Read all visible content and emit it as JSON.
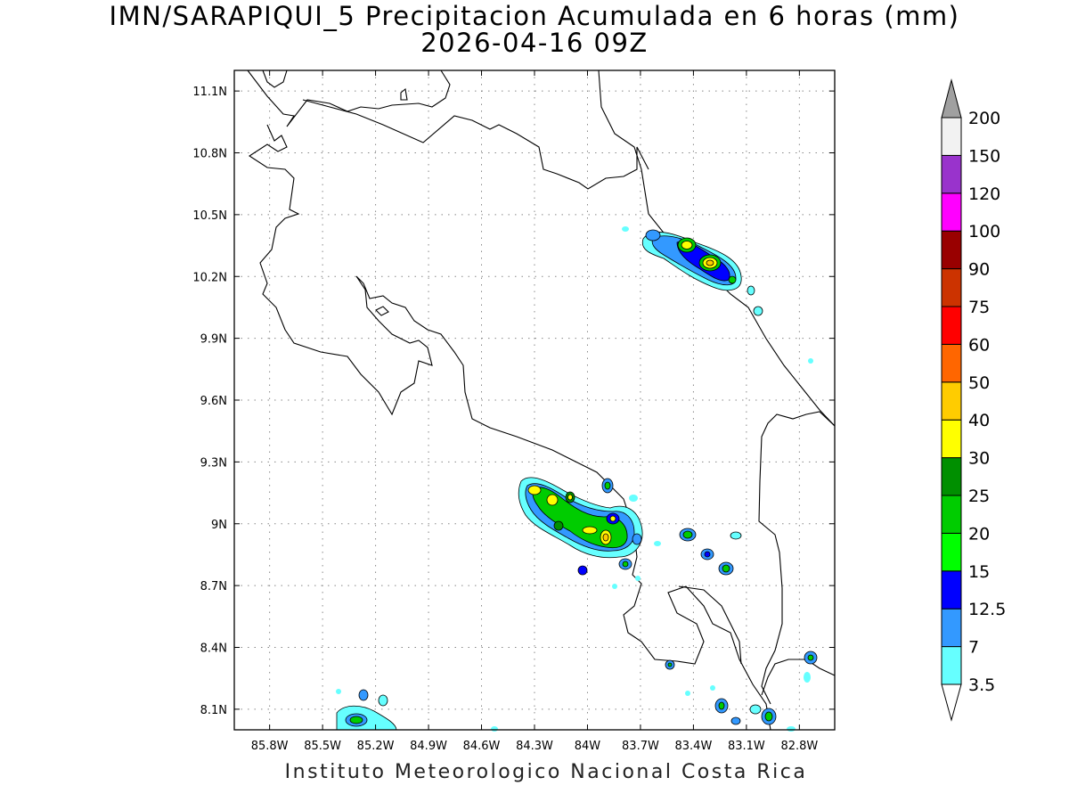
{
  "title": {
    "line1": "IMN/SARAPIQUI_5 Precipitacion Acumulada en 6 horas (mm)",
    "line2": "2026-04-16 09Z"
  },
  "footer": "Instituto Meteorologico Nacional Costa Rica",
  "map": {
    "lon_range": [
      -86.0,
      -82.6
    ],
    "lat_range": [
      8.0,
      11.2
    ],
    "x_ticks": [
      {
        "value": -85.8,
        "label": "85.8W"
      },
      {
        "value": -85.5,
        "label": "85.5W"
      },
      {
        "value": -85.2,
        "label": "85.2W"
      },
      {
        "value": -84.9,
        "label": "84.9W"
      },
      {
        "value": -84.6,
        "label": "84.6W"
      },
      {
        "value": -84.3,
        "label": "84.3W"
      },
      {
        "value": -84.0,
        "label": "84W"
      },
      {
        "value": -83.7,
        "label": "83.7W"
      },
      {
        "value": -83.4,
        "label": "83.4W"
      },
      {
        "value": -83.1,
        "label": "83.1W"
      },
      {
        "value": -82.8,
        "label": "82.8W"
      }
    ],
    "y_ticks": [
      {
        "value": 8.1,
        "label": "8.1N"
      },
      {
        "value": 8.4,
        "label": "8.4N"
      },
      {
        "value": 8.7,
        "label": "8.7N"
      },
      {
        "value": 9.0,
        "label": "9N"
      },
      {
        "value": 9.3,
        "label": "9.3N"
      },
      {
        "value": 9.6,
        "label": "9.6N"
      },
      {
        "value": 9.9,
        "label": "9.9N"
      },
      {
        "value": 10.2,
        "label": "10.2N"
      },
      {
        "value": 10.5,
        "label": "10.5N"
      },
      {
        "value": 10.8,
        "label": "10.8N"
      },
      {
        "value": 11.1,
        "label": "11.1N"
      }
    ],
    "grid": "dotted",
    "levels": [
      {
        "label": "3.5",
        "color": "#66ffff"
      },
      {
        "label": "7",
        "color": "#3399ff"
      },
      {
        "label": "12.5",
        "color": "#0000ff"
      },
      {
        "label": "15",
        "color": "#00ff00"
      },
      {
        "label": "20",
        "color": "#00cc00"
      },
      {
        "label": "25",
        "color": "#008f00"
      },
      {
        "label": "30",
        "color": "#ffff00"
      },
      {
        "label": "40",
        "color": "#ffcc00"
      },
      {
        "label": "50",
        "color": "#ff6600"
      },
      {
        "label": "60",
        "color": "#ff0000"
      },
      {
        "label": "75",
        "color": "#cc3300"
      },
      {
        "label": "90",
        "color": "#990000"
      },
      {
        "label": "100",
        "color": "#ff00ff"
      },
      {
        "label": "120",
        "color": "#9933cc"
      },
      {
        "label": "150",
        "color": "#f2f2f2"
      },
      {
        "label": "200",
        "color": "#a0a0a0"
      }
    ]
  }
}
